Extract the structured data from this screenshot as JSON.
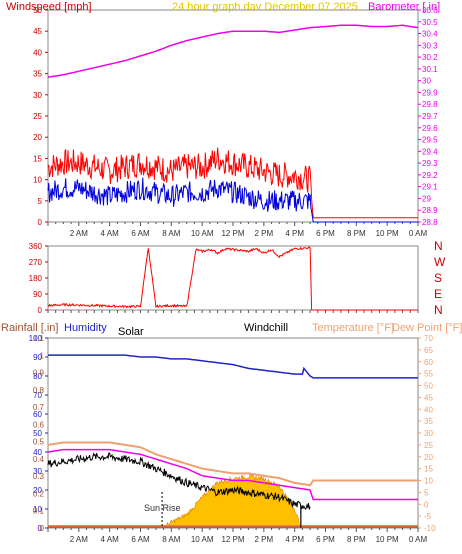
{
  "colors": {
    "red": "#ff0000",
    "crimson": "#cc0000",
    "magenta": "#ee00ee",
    "blue": "#0000dd",
    "navy": "#2222cc",
    "orange": "#ff8040",
    "salmon": "#f0a070",
    "yellow": "#e0c800",
    "black": "#000000",
    "gold": "#ffc000",
    "goldDark": "#e08000",
    "brown": "#a05030"
  },
  "chart_data": [
    {
      "type": "line",
      "title": "24 hour graph.dav   December 07 2025",
      "left_axis_label": "Windspeed [mph]",
      "right_axis_label": "Barometer [.in]",
      "left_ticks": [
        "0",
        "5",
        "10",
        "15",
        "20",
        "25",
        "30",
        "35",
        "40",
        "45",
        "50"
      ],
      "right_ticks": [
        "28.8",
        "28.9",
        "29",
        "29.1",
        "29.2",
        "29.3",
        "29.4",
        "29.5",
        "29.6",
        "29.7",
        "29.8",
        "29.9",
        "30",
        "30.1",
        "30.2",
        "30.3",
        "30.4",
        "30.5",
        "30.6"
      ],
      "ylim_left": [
        0,
        50
      ],
      "ylim_right": [
        28.8,
        30.6
      ],
      "xlim_hours": [
        0,
        24
      ],
      "x_ticks": [
        "2 AM",
        "4 AM",
        "6 AM",
        "8 AM",
        "10 AM",
        "12 PM",
        "2 PM",
        "4 PM",
        "6 PM",
        "8 PM",
        "10 PM",
        "0 AM"
      ],
      "series": [
        {
          "name": "Barometer [.in]",
          "axis": "right",
          "color": "#ee00ee",
          "x": [
            0,
            1,
            2,
            3,
            4,
            5,
            6,
            7,
            8,
            9,
            10,
            11,
            12,
            13,
            14,
            15,
            16,
            17,
            18,
            19,
            20,
            21,
            22,
            23,
            24
          ],
          "y": [
            30.03,
            30.05,
            30.08,
            30.11,
            30.14,
            30.17,
            30.21,
            30.25,
            30.3,
            30.34,
            30.37,
            30.4,
            30.42,
            30.42,
            30.42,
            30.41,
            30.43,
            30.45,
            30.46,
            30.47,
            30.47,
            30.46,
            30.46,
            30.47,
            30.45
          ]
        },
        {
          "name": "Wind gust",
          "axis": "left",
          "color": "#ff0000",
          "x": [
            0,
            1,
            2,
            3,
            4,
            5,
            6,
            7,
            8,
            9,
            10,
            11,
            12,
            13,
            14,
            15,
            16,
            17,
            17.2,
            24
          ],
          "y": [
            13,
            14,
            14,
            13,
            12,
            13,
            14,
            13,
            12,
            13,
            13,
            15,
            14,
            13,
            12,
            11,
            11,
            10,
            1,
            1
          ]
        },
        {
          "name": "Wind speed",
          "axis": "left",
          "color": "#0000dd",
          "x": [
            0,
            1,
            2,
            3,
            4,
            5,
            6,
            7,
            8,
            9,
            10,
            11,
            12,
            13,
            14,
            15,
            16,
            17,
            17.2,
            24
          ],
          "y": [
            7,
            8,
            8,
            7,
            6,
            7,
            8,
            7,
            6,
            7,
            7,
            8,
            7,
            6,
            5,
            5,
            5,
            5,
            0,
            0
          ]
        }
      ]
    },
    {
      "type": "line",
      "name": "Wind direction",
      "right_labels": [
        "N",
        "W",
        "S",
        "E",
        "N"
      ],
      "left_ticks": [
        "0",
        "90",
        "180",
        "270",
        "360"
      ],
      "ylim": [
        0,
        360
      ],
      "xlim_hours": [
        0,
        24
      ],
      "series": [
        {
          "name": "Wind direction",
          "color": "#ff0000",
          "x": [
            0,
            1,
            2,
            3,
            4,
            5,
            6,
            6.5,
            7,
            8,
            9,
            9.6,
            10,
            10.6,
            11,
            11.5,
            12,
            13,
            13.5,
            14,
            14.5,
            15,
            16,
            17,
            17.1,
            24
          ],
          "y": [
            25,
            30,
            28,
            25,
            22,
            20,
            20,
            350,
            20,
            25,
            20,
            340,
            330,
            340,
            320,
            345,
            340,
            330,
            345,
            320,
            340,
            300,
            345,
            350,
            0,
            0
          ]
        }
      ]
    },
    {
      "type": "line",
      "left_axis_label": "Rainfall [.in]",
      "humidity_label": "Humidity",
      "solar_label": "Solar",
      "windchill_label": "Windchill",
      "temp_label": "Temperature [°F]",
      "dew_label": "Dew Point [°F]",
      "sunrise_label": "Sun Rise",
      "humidity_ticks": [
        "0",
        "10",
        "20",
        "30",
        "40",
        "50",
        "60",
        "70",
        "80",
        "90",
        "100"
      ],
      "rain_ticks": [
        "0",
        "0.1",
        "0.2",
        "0.3",
        "0.4",
        "0.5",
        "0.6",
        "0.7",
        "0.8",
        "0.9",
        "1",
        "1.1"
      ],
      "temp_ticks": [
        "-10",
        "-5",
        "0",
        "5",
        "10",
        "15",
        "20",
        "25",
        "30",
        "35",
        "40",
        "45",
        "50",
        "55",
        "60",
        "65",
        "70"
      ],
      "ylim_humidity": [
        0,
        100
      ],
      "ylim_temp": [
        -10,
        70
      ],
      "xlim_hours": [
        0,
        24
      ],
      "x_ticks": [
        "2 AM",
        "4 AM",
        "6 AM",
        "8 AM",
        "10 AM",
        "12 PM",
        "2 PM",
        "4 PM",
        "6 PM",
        "8 PM",
        "10 PM",
        "0 AM"
      ],
      "series": [
        {
          "name": "Humidity",
          "color": "#2222cc",
          "x": [
            0,
            1,
            2,
            3,
            4,
            5,
            6,
            7,
            8,
            9,
            10,
            11,
            12,
            13,
            14,
            15,
            16,
            16.5,
            16.6,
            17,
            17.2,
            24
          ],
          "y": [
            91,
            91,
            91,
            91,
            91,
            91,
            90,
            90,
            89,
            89,
            88,
            87,
            86,
            84,
            83,
            82,
            81,
            81,
            84,
            80,
            79,
            79
          ]
        },
        {
          "name": "Temperature [°F]",
          "color": "#f0a070",
          "x": [
            0,
            1,
            2,
            3,
            4,
            5,
            6,
            7,
            8,
            9,
            10,
            11,
            12,
            13,
            14,
            15,
            16,
            17,
            17.2,
            24
          ],
          "y": [
            25,
            26,
            26,
            26,
            26,
            25,
            24,
            21,
            19,
            17,
            15,
            14,
            13,
            13,
            12,
            11,
            9,
            8,
            10,
            10
          ]
        },
        {
          "name": "Dew Point [°F]",
          "color": "#ee00ee",
          "x": [
            0,
            1,
            2,
            3,
            4,
            5,
            6,
            7,
            8,
            9,
            10,
            11,
            12,
            13,
            14,
            15,
            16,
            17,
            17.2,
            24
          ],
          "y": [
            22,
            23,
            23,
            23,
            23,
            22,
            21,
            19,
            17,
            15,
            12,
            11,
            10,
            10,
            9,
            8,
            7,
            6,
            2,
            2
          ]
        },
        {
          "name": "Windchill",
          "color": "#000000",
          "x": [
            0,
            1,
            2,
            3,
            4,
            5,
            6,
            7,
            8,
            9,
            10,
            11,
            12,
            13,
            14,
            15,
            16,
            17
          ],
          "y": [
            17,
            18,
            19,
            20,
            20,
            19,
            18,
            15,
            12,
            9,
            7,
            5,
            6,
            5,
            4,
            3,
            0,
            -1
          ]
        },
        {
          "name": "Solar",
          "color": "#ffc000",
          "x": [
            7.4,
            8,
            9,
            10,
            11,
            12,
            13,
            14,
            15,
            16,
            16.4
          ],
          "y": [
            0,
            3,
            7,
            16,
            24,
            26,
            27,
            26,
            22,
            10,
            0
          ]
        },
        {
          "name": "Rainfall [.in]",
          "color": "#a05030",
          "x": [
            0,
            24
          ],
          "y": [
            0,
            0
          ]
        }
      ]
    }
  ]
}
